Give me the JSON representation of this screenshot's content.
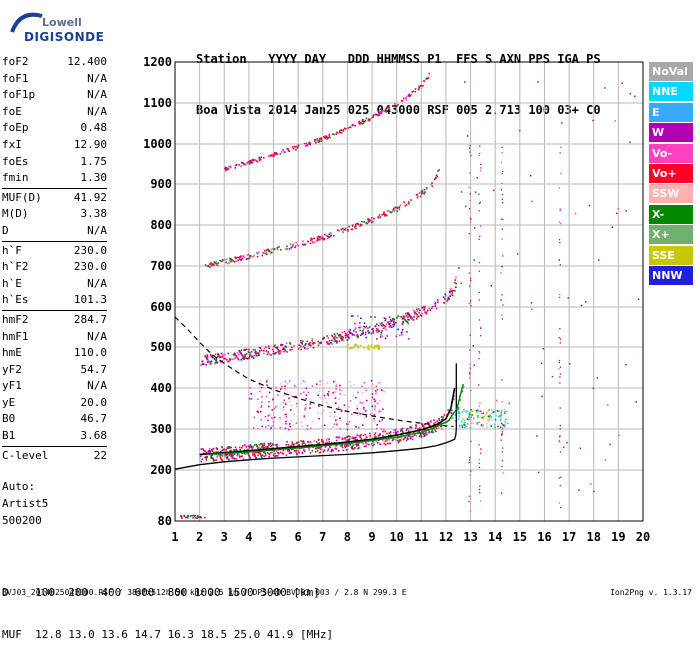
{
  "logo": {
    "line1": "Lowell",
    "line2": "DIGISONDE"
  },
  "header": {
    "row1": "Station   YYYY DAY   DDD HHMMSS P1  FFS S AXN PPS IGA PS",
    "row2": "Boa Vista 2014 Jan25 025 043000 RSF 005 2 713 100 03+ C0"
  },
  "params": [
    [
      {
        "k": "foF2",
        "v": "12.400"
      },
      {
        "k": "foF1",
        "v": "N/A"
      },
      {
        "k": "foF1p",
        "v": "N/A"
      },
      {
        "k": "foE",
        "v": "N/A"
      },
      {
        "k": "foEp",
        "v": "0.48"
      },
      {
        "k": "fxI",
        "v": "12.90"
      },
      {
        "k": "foEs",
        "v": "1.75"
      },
      {
        "k": "fmin",
        "v": "1.30"
      }
    ],
    [
      {
        "k": "MUF(D)",
        "v": "41.92"
      },
      {
        "k": "M(D)",
        "v": "3.38"
      },
      {
        "k": "D",
        "v": "N/A"
      }
    ],
    [
      {
        "k": "h`F",
        "v": "230.0"
      },
      {
        "k": "h`F2",
        "v": "230.0"
      },
      {
        "k": "h`E",
        "v": "N/A"
      },
      {
        "k": "h`Es",
        "v": "101.3"
      }
    ],
    [
      {
        "k": "hmF2",
        "v": "284.7"
      },
      {
        "k": "hmF1",
        "v": "N/A"
      },
      {
        "k": "hmE",
        "v": "110.0"
      },
      {
        "k": "yF2",
        "v": "54.7"
      },
      {
        "k": "yF1",
        "v": "N/A"
      },
      {
        "k": "yE",
        "v": "20.0"
      },
      {
        "k": "B0",
        "v": "46.7"
      },
      {
        "k": "B1",
        "v": "3.68"
      }
    ],
    [
      {
        "k": "C-level",
        "v": "22"
      }
    ]
  ],
  "auto": {
    "line1": "Auto:",
    "line2": "Artist5",
    "line3": "500200"
  },
  "legend": [
    {
      "label": "NoVal",
      "color": "#a8a8a8"
    },
    {
      "label": "NNE",
      "color": "#00d8ff"
    },
    {
      "label": "E",
      "color": "#3aa8ff"
    },
    {
      "label": "W",
      "color": "#b000b0"
    },
    {
      "label": "Vo-",
      "color": "#ff40c0"
    },
    {
      "label": "Vo+",
      "color": "#ff0028"
    },
    {
      "label": "SSW",
      "color": "#ffb0b0"
    },
    {
      "label": "X-",
      "color": "#008800"
    },
    {
      "label": "X+",
      "color": "#70b070"
    },
    {
      "label": "SSE",
      "color": "#c8c800"
    },
    {
      "label": "NNW",
      "color": "#2020d8"
    }
  ],
  "bottom": {
    "line1": "D    100  200  400  600  800 1000 1500 3000 [km]",
    "line2": "MUF  12.8 13.0 13.6 14.7 16.3 18.5 25.0 41.9 [MHz]"
  },
  "footer": "BVJ03_2014025043000.RSF / 384fx512h 50 kHz 2.5 km / DPS-4D BVJ03 003 / 2.8 N 299.3 E",
  "version": "Ion2Png v. 1.3.17",
  "chart_data": {
    "type": "scatter",
    "xlim": [
      1,
      20
    ],
    "ylim": [
      80,
      1200
    ],
    "x_ticks": [
      1,
      2,
      3,
      4,
      5,
      6,
      7,
      8,
      9,
      10,
      11,
      12,
      13,
      14,
      15,
      16,
      17,
      18,
      19,
      20
    ],
    "y_ticks": [
      80,
      200,
      300,
      400,
      500,
      600,
      700,
      800,
      900,
      1000,
      1100,
      1200
    ],
    "y_tick_labels": [
      "80",
      "200",
      "300",
      "400",
      "500",
      "600",
      "700",
      "800",
      "900",
      "1000",
      "1100",
      "1200"
    ],
    "grid": true,
    "traces": {
      "o1": {
        "x": [
          2.0,
          3.0,
          4.0,
          5.0,
          6.0,
          7.0,
          8.0,
          9.0,
          10.0,
          11.0,
          11.6,
          12.0,
          12.2,
          12.35
        ],
        "y": [
          238,
          242,
          247,
          252,
          257,
          262,
          268,
          275,
          285,
          298,
          310,
          325,
          350,
          400
        ]
      },
      "o2": {
        "x": [
          2.0,
          3.0,
          4.0,
          5.0,
          6.0,
          7.0,
          8.0,
          9.0,
          10.0,
          11.0,
          11.5,
          12.0,
          12.3,
          12.5
        ],
        "y": [
          468,
          476,
          485,
          495,
          505,
          517,
          532,
          548,
          566,
          590,
          605,
          625,
          645,
          690
        ]
      },
      "o3": {
        "x": [
          2.2,
          3.0,
          4.0,
          5.0,
          6.0,
          7.0,
          8.0,
          9.0,
          10.0,
          10.5,
          11.0,
          11.4,
          11.7
        ],
        "y": [
          702,
          712,
          725,
          740,
          755,
          772,
          792,
          815,
          842,
          860,
          880,
          900,
          935
        ]
      },
      "o4": {
        "x": [
          3.0,
          4.0,
          5.0,
          6.0,
          7.0,
          8.0,
          9.0,
          10.0,
          10.5,
          11.0,
          11.3
        ],
        "y": [
          940,
          956,
          975,
          995,
          1015,
          1040,
          1068,
          1100,
          1120,
          1145,
          1170
        ]
      },
      "x_mode": {
        "x": [
          2.3,
          3.0,
          4.0,
          5.0,
          6.0,
          7.0,
          8.0,
          9.0,
          10.0,
          11.0,
          11.6,
          12.1,
          12.45,
          12.7
        ],
        "y": [
          238,
          240,
          244,
          249,
          254,
          259,
          265,
          272,
          280,
          292,
          305,
          320,
          350,
          410
        ]
      },
      "profile_solid": {
        "x": [
          1.0,
          2.0,
          3.0,
          4.0,
          5.0,
          6.0,
          7.0,
          8.0,
          9.0,
          10.0,
          11.0,
          11.6,
          12.0,
          12.35,
          12.4,
          12.42,
          12.42
        ],
        "y": [
          202,
          213,
          220,
          225,
          229,
          232,
          235,
          238,
          242,
          247,
          253,
          259,
          266,
          275,
          285,
          300,
          460
        ]
      },
      "profile_dashed": {
        "x": [
          1.0,
          1.5,
          2.0,
          2.5,
          3.0,
          3.5,
          4.0,
          5.0,
          6.0,
          7.0,
          8.0,
          9.0,
          10.0,
          11.0,
          11.8,
          12.3
        ],
        "y": [
          575,
          545,
          512,
          482,
          460,
          440,
          422,
          396,
          375,
          357,
          343,
          332,
          322,
          314,
          309,
          306
        ]
      },
      "es_cluster": {
        "x": [
          1.3,
          1.8,
          2.0
        ],
        "y": [
          92,
          92,
          92
        ]
      }
    }
  }
}
